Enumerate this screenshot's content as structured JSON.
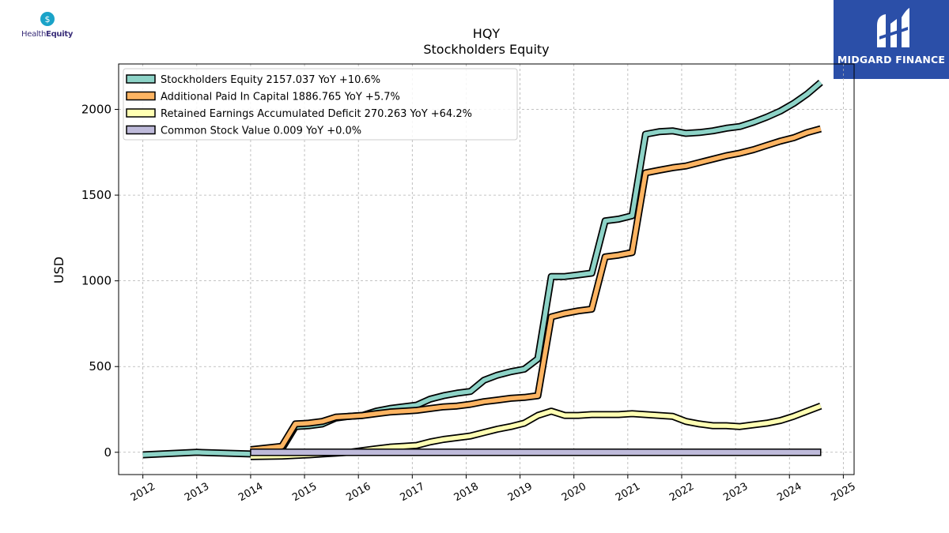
{
  "logos": {
    "left_brand": "HealthEquity",
    "left_brand_part1": "Health",
    "left_brand_part2": "Equity",
    "right_brand": "MIDGARD FINANCE"
  },
  "chart_data": {
    "type": "line",
    "title": "HQY",
    "subtitle": "Stockholders  Equity",
    "ylabel": "USD",
    "xlabel": "",
    "xlim": [
      2011.55,
      2025.2
    ],
    "ylim": [
      -130,
      2265
    ],
    "yticks": [
      0,
      500,
      1000,
      1500,
      2000
    ],
    "xticks": [
      2012,
      2013,
      2014,
      2015,
      2016,
      2017,
      2018,
      2019,
      2020,
      2021,
      2022,
      2023,
      2024,
      2025
    ],
    "grid": true,
    "legend_position": "top-left",
    "colors": {
      "Stockholders Equity": "#8dd3c7",
      "Additional Paid In Capital": "#fdb462",
      "Retained Earnings Accumulated Deficit": "#ffffb3",
      "Common Stock Value": "#bebada",
      "outline": "#000000"
    },
    "series": [
      {
        "name": "Stockholders Equity",
        "legend": "Stockholders Equity  2157.037 YoY +10.6%",
        "x": [
          2012.0,
          2013.0,
          2014.0,
          2014.58,
          2014.83,
          2015.08,
          2015.33,
          2015.58,
          2015.83,
          2016.08,
          2016.33,
          2016.58,
          2016.83,
          2017.08,
          2017.33,
          2017.58,
          2017.83,
          2018.08,
          2018.33,
          2018.58,
          2018.83,
          2019.08,
          2019.33,
          2019.58,
          2019.83,
          2020.08,
          2020.33,
          2020.58,
          2020.83,
          2021.08,
          2021.33,
          2021.58,
          2021.83,
          2022.08,
          2022.33,
          2022.58,
          2022.83,
          2023.08,
          2023.33,
          2023.58,
          2023.83,
          2024.08,
          2024.33,
          2024.58
        ],
        "y": [
          -15,
          0,
          -10,
          20,
          150,
          155,
          165,
          200,
          210,
          215,
          240,
          255,
          265,
          275,
          310,
          330,
          345,
          355,
          420,
          450,
          470,
          485,
          545,
          1025,
          1025,
          1035,
          1045,
          1350,
          1360,
          1380,
          1855,
          1870,
          1875,
          1860,
          1865,
          1875,
          1890,
          1900,
          1925,
          1955,
          1990,
          2035,
          2090,
          2157
        ]
      },
      {
        "name": "Additional Paid In Capital",
        "legend": "Additional Paid In Capital  1886.765 YoY +5.7%",
        "x": [
          2014.0,
          2014.58,
          2014.83,
          2015.08,
          2015.33,
          2015.58,
          2015.83,
          2016.08,
          2016.33,
          2016.58,
          2016.83,
          2017.08,
          2017.33,
          2017.58,
          2017.83,
          2018.08,
          2018.33,
          2018.58,
          2018.83,
          2019.08,
          2019.33,
          2019.58,
          2019.83,
          2020.08,
          2020.33,
          2020.58,
          2020.83,
          2021.08,
          2021.33,
          2021.58,
          2021.83,
          2022.08,
          2022.33,
          2022.58,
          2022.83,
          2023.08,
          2023.33,
          2023.58,
          2023.83,
          2024.08,
          2024.33,
          2024.58
        ],
        "y": [
          15,
          35,
          165,
          170,
          180,
          205,
          210,
          215,
          225,
          235,
          240,
          245,
          255,
          265,
          270,
          280,
          295,
          305,
          315,
          320,
          330,
          790,
          810,
          825,
          835,
          1140,
          1150,
          1165,
          1630,
          1645,
          1660,
          1670,
          1690,
          1710,
          1730,
          1745,
          1765,
          1790,
          1815,
          1835,
          1865,
          1887
        ]
      },
      {
        "name": "Retained Earnings Accumulated Deficit",
        "legend": "Retained Earnings Accumulated Deficit  270.263 YoY +64.2%",
        "x": [
          2014.0,
          2014.58,
          2014.83,
          2015.08,
          2015.33,
          2015.58,
          2015.83,
          2016.08,
          2016.33,
          2016.58,
          2016.83,
          2017.08,
          2017.33,
          2017.58,
          2017.83,
          2018.08,
          2018.33,
          2018.58,
          2018.83,
          2019.08,
          2019.33,
          2019.58,
          2019.83,
          2020.08,
          2020.33,
          2020.58,
          2020.83,
          2021.08,
          2021.33,
          2021.58,
          2021.83,
          2022.08,
          2022.33,
          2022.58,
          2022.83,
          2023.08,
          2023.33,
          2023.58,
          2023.83,
          2024.08,
          2024.33,
          2024.58
        ],
        "y": [
          -25,
          -22,
          -18,
          -15,
          -10,
          -5,
          0,
          10,
          20,
          30,
          35,
          40,
          60,
          75,
          85,
          95,
          115,
          135,
          150,
          170,
          215,
          240,
          215,
          215,
          220,
          220,
          220,
          225,
          220,
          215,
          210,
          180,
          165,
          155,
          155,
          150,
          160,
          170,
          185,
          210,
          240,
          270
        ]
      },
      {
        "name": "Common Stock Value",
        "legend": "Common Stock Value  0.009 YoY +0.0%",
        "x": [
          2014.0,
          2024.58
        ],
        "y": [
          0.009,
          0.009
        ]
      }
    ]
  }
}
